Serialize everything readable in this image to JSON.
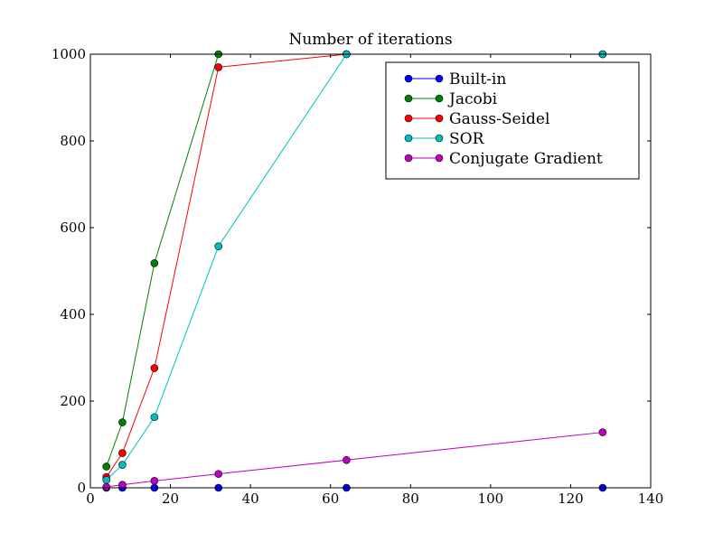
{
  "chart_data": {
    "type": "line",
    "title": "Number of iterations",
    "xlabel": "",
    "ylabel": "",
    "xlim": [
      0,
      140
    ],
    "ylim": [
      0,
      1000
    ],
    "xticks": [
      0,
      20,
      40,
      60,
      80,
      100,
      120,
      140
    ],
    "yticks": [
      0,
      200,
      400,
      600,
      800,
      1000
    ],
    "grid": false,
    "legend_position": "top-right",
    "x": [
      4,
      8,
      16,
      32,
      64,
      128
    ],
    "series": [
      {
        "name": "Built-in",
        "color": "#0000ff",
        "values": [
          0,
          0,
          0,
          0,
          0,
          0
        ]
      },
      {
        "name": "Jacobi",
        "color": "#008000",
        "values": [
          49,
          151,
          518,
          1000,
          1000,
          1000
        ]
      },
      {
        "name": "Gauss-Seidel",
        "color": "#ff0000",
        "values": [
          25,
          80,
          276,
          970,
          1000,
          1000
        ]
      },
      {
        "name": "SOR",
        "color": "#00bfbf",
        "values": [
          18,
          53,
          163,
          557,
          1000,
          1000
        ]
      },
      {
        "name": "Conjugate Gradient",
        "color": "#bf00bf",
        "values": [
          2,
          7,
          16,
          32,
          64,
          128
        ]
      }
    ]
  }
}
